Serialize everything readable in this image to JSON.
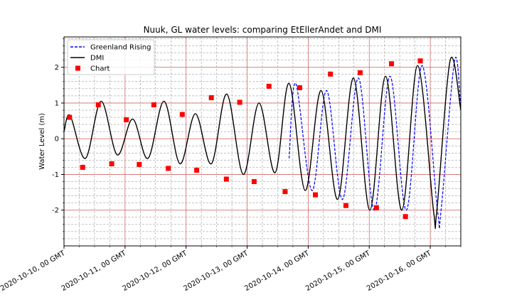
{
  "chart_data": {
    "type": "line",
    "title": "Nuuk, GL water levels: comparing EtEllerAndet and DMI",
    "xlabel": "",
    "ylabel": "Water Level (m)",
    "x_axis": {
      "type": "date",
      "range": [
        "2020-10-10T00:00",
        "2020-10-16T12:00"
      ]
    },
    "ylim": [
      -3,
      2.85
    ],
    "yticks": [
      -2,
      -1,
      0,
      1,
      2
    ],
    "xticks": [
      {
        "t": "2020-10-10T00:00",
        "label": "2020-10-10, 00 GMT"
      },
      {
        "t": "2020-10-11T00:00",
        "label": "2020-10-11, 00 GMT"
      },
      {
        "t": "2020-10-12T00:00",
        "label": "2020-10-12, 00 GMT"
      },
      {
        "t": "2020-10-13T00:00",
        "label": "2020-10-13, 00 GMT"
      },
      {
        "t": "2020-10-14T00:00",
        "label": "2020-10-14, 00 GMT"
      },
      {
        "t": "2020-10-15T00:00",
        "label": "2020-10-15, 00 GMT"
      },
      {
        "t": "2020-10-16T00:00",
        "label": "2020-10-16, 00 GMT"
      }
    ],
    "grid": {
      "major": true,
      "minor": true,
      "major_color": "#d45a5a",
      "minor_color": "#888888"
    },
    "legend": {
      "position": "top-left",
      "entries": [
        "Greenland Rising",
        "DMI",
        "Chart"
      ]
    },
    "series": [
      {
        "name": "Greenland Rising",
        "style": "dashed-line",
        "color": "#0000ff",
        "points": [
          [
            "2020-10-13T16:30",
            -0.55
          ],
          [
            "2020-10-13T19:05",
            1.55
          ],
          [
            "2020-10-14T01:30",
            -1.45
          ],
          [
            "2020-10-14T07:15",
            1.35
          ],
          [
            "2020-10-14T13:30",
            -1.7
          ],
          [
            "2020-10-14T19:45",
            1.7
          ],
          [
            "2020-10-15T02:00",
            -2.0
          ],
          [
            "2020-10-15T08:10",
            1.75
          ],
          [
            "2020-10-15T14:35",
            -2.0
          ],
          [
            "2020-10-15T20:45",
            2.05
          ],
          [
            "2020-10-16T02:50",
            -2.0
          ],
          [
            "2020-10-16T04:15",
            -2.0
          ],
          [
            "2020-10-16T09:35",
            2.2
          ],
          [
            "2020-10-16T12:00",
            0.8
          ]
        ]
      },
      {
        "name": "DMI",
        "style": "solid-line",
        "color": "#000000",
        "points": [
          [
            "2020-10-10T00:00",
            0.2
          ],
          [
            "2020-10-10T02:25",
            0.65
          ],
          [
            "2020-10-10T08:25",
            -0.55
          ],
          [
            "2020-10-10T14:35",
            1.05
          ],
          [
            "2020-10-10T20:55",
            -0.45
          ],
          [
            "2020-10-11T03:00",
            0.55
          ],
          [
            "2020-10-11T09:00",
            -0.55
          ],
          [
            "2020-10-11T15:20",
            1.05
          ],
          [
            "2020-10-11T21:35",
            -0.7
          ],
          [
            "2020-10-12T03:40",
            0.7
          ],
          [
            "2020-10-12T09:55",
            -0.7
          ],
          [
            "2020-10-12T16:00",
            1.25
          ],
          [
            "2020-10-12T22:30",
            -1.0
          ],
          [
            "2020-10-13T04:40",
            1.0
          ],
          [
            "2020-10-13T11:00",
            -0.95
          ],
          [
            "2020-10-13T16:30",
            1.55
          ],
          [
            "2020-10-13T22:50",
            -1.45
          ],
          [
            "2020-10-14T05:05",
            1.35
          ],
          [
            "2020-10-14T11:35",
            -1.7
          ],
          [
            "2020-10-14T17:50",
            1.7
          ],
          [
            "2020-10-15T00:15",
            -2.0
          ],
          [
            "2020-10-15T06:25",
            1.75
          ],
          [
            "2020-10-15T12:50",
            -2.0
          ],
          [
            "2020-10-15T19:00",
            2.05
          ],
          [
            "2020-10-16T01:15",
            -2.0
          ],
          [
            "2020-10-16T02:35",
            -2.0
          ],
          [
            "2020-10-16T07:50",
            2.2
          ],
          [
            "2020-10-16T12:00",
            0.8
          ]
        ]
      },
      {
        "name": "Chart",
        "style": "markers",
        "color": "#ff0000",
        "points": [
          [
            "2020-10-10T02:10",
            0.6
          ],
          [
            "2020-10-10T07:20",
            -0.8
          ],
          [
            "2020-10-10T13:30",
            0.95
          ],
          [
            "2020-10-10T18:45",
            -0.7
          ],
          [
            "2020-10-11T00:30",
            0.53
          ],
          [
            "2020-10-11T05:35",
            -0.72
          ],
          [
            "2020-10-11T11:20",
            0.95
          ],
          [
            "2020-10-11T17:00",
            -0.83
          ],
          [
            "2020-10-11T22:30",
            0.68
          ],
          [
            "2020-10-12T04:10",
            -0.88
          ],
          [
            "2020-10-12T09:55",
            1.15
          ],
          [
            "2020-10-12T15:50",
            -1.13
          ],
          [
            "2020-10-12T21:05",
            1.02
          ],
          [
            "2020-10-13T02:45",
            -1.2
          ],
          [
            "2020-10-13T08:35",
            1.47
          ],
          [
            "2020-10-13T14:55",
            -1.48
          ],
          [
            "2020-10-13T20:40",
            1.43
          ],
          [
            "2020-10-14T02:50",
            -1.57
          ],
          [
            "2020-10-14T08:45",
            1.81
          ],
          [
            "2020-10-14T14:50",
            -1.87
          ],
          [
            "2020-10-14T20:25",
            1.85
          ],
          [
            "2020-10-15T02:50",
            -1.93
          ],
          [
            "2020-10-15T08:45",
            2.1
          ],
          [
            "2020-10-15T14:15",
            -2.18
          ],
          [
            "2020-10-15T20:05",
            2.18
          ]
        ]
      }
    ]
  }
}
